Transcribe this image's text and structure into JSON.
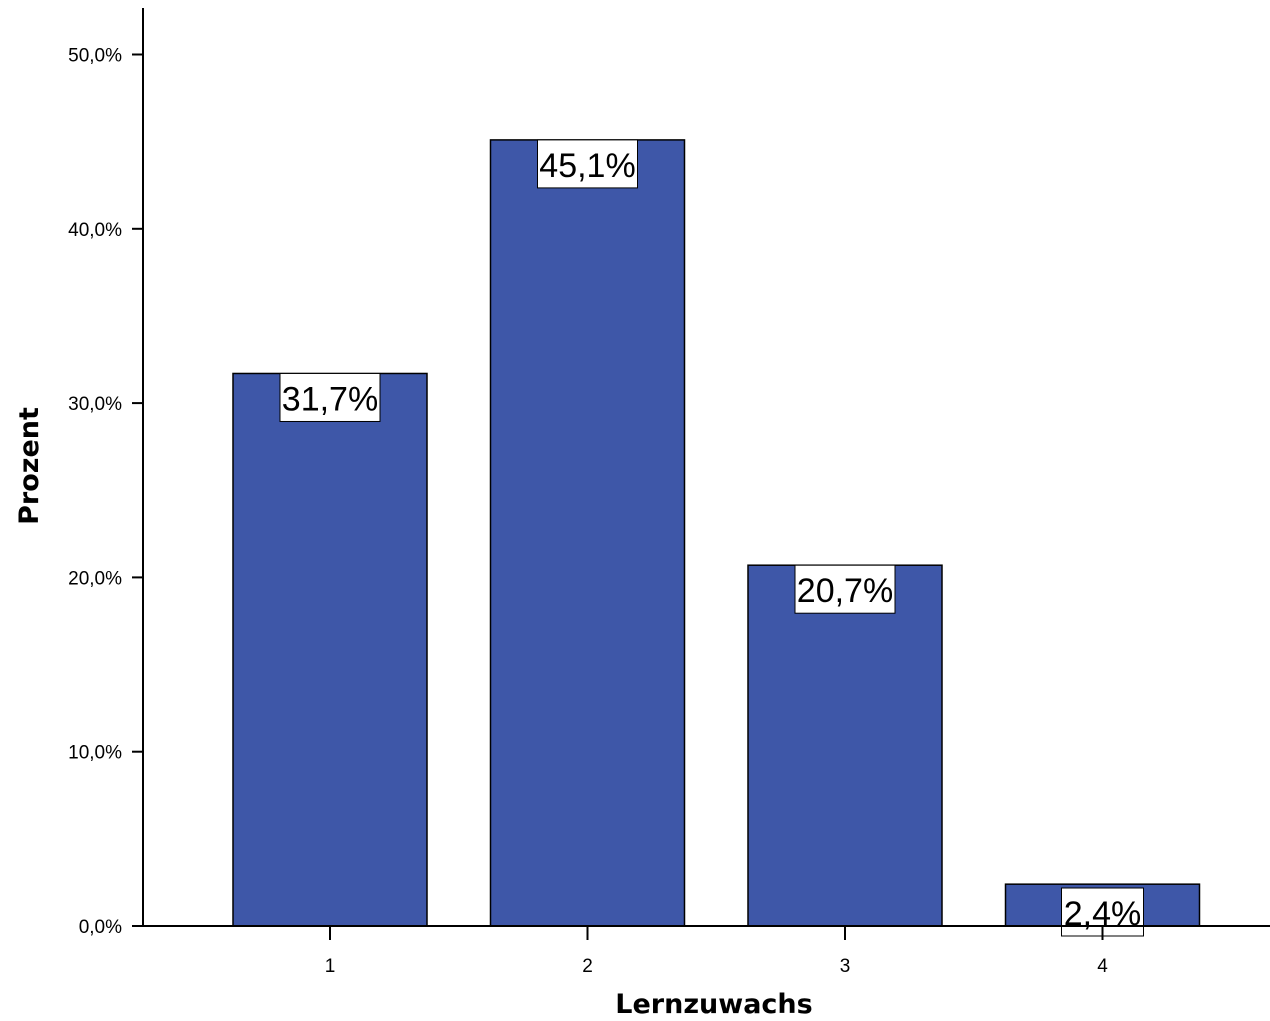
{
  "chart_data": {
    "type": "bar",
    "title": "",
    "xlabel": "Lernzuwachs",
    "ylabel": "Prozent",
    "categories": [
      "1",
      "2",
      "3",
      "4"
    ],
    "values": [
      31.7,
      45.1,
      20.7,
      2.4
    ],
    "data_labels": [
      "31,7%",
      "45,1%",
      "20,7%",
      "2,4%"
    ],
    "ylim": [
      0,
      52.5
    ],
    "y_ticks": [
      0,
      10,
      20,
      30,
      40,
      50
    ],
    "y_tick_labels": [
      "0,0%",
      "10,0%",
      "20,0%",
      "30,0%",
      "40,0%",
      "50,0%"
    ],
    "grid": false,
    "legend": "none",
    "bar_color": "#3e57a8"
  }
}
